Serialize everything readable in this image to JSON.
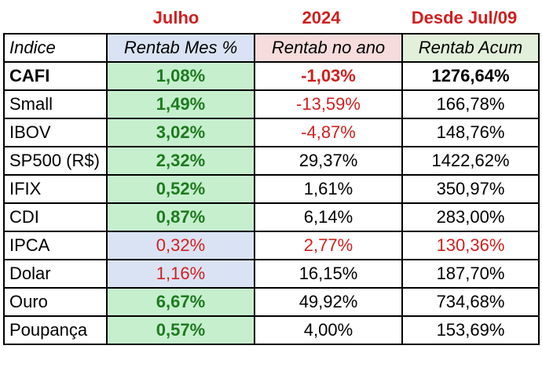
{
  "titles": {
    "month": "Julho",
    "year": "2024",
    "since": "Desde Jul/09"
  },
  "header": {
    "index": "Indice",
    "mes": "Rentab Mes %",
    "ano": "Rentab no ano",
    "acum": "Rentab Acum"
  },
  "colors": {
    "red": "#d01f1f",
    "green": "#1e7a1e",
    "green_fill": "#c6efce",
    "blue_fill": "#dae3f3",
    "pink_fill": "#f6dcdc",
    "olive_fill": "#e2efda"
  },
  "rows": [
    {
      "name": "CAFI",
      "mes": "1,08%",
      "ano": "-1,03%",
      "acum": "1276,64%"
    },
    {
      "name": "Small",
      "mes": "1,49%",
      "ano": "-13,59%",
      "acum": "166,78%"
    },
    {
      "name": "IBOV",
      "mes": "3,02%",
      "ano": "-4,87%",
      "acum": "148,76%"
    },
    {
      "name": "SP500 (R$)",
      "mes": "2,32%",
      "ano": "29,37%",
      "acum": "1422,62%"
    },
    {
      "name": "IFIX",
      "mes": "0,52%",
      "ano": "1,61%",
      "acum": "350,97%"
    },
    {
      "name": "CDI",
      "mes": "0,87%",
      "ano": "6,14%",
      "acum": "283,00%"
    },
    {
      "name": "IPCA",
      "mes": "0,32%",
      "ano": "2,77%",
      "acum": "130,36%"
    },
    {
      "name": "Dolar",
      "mes": "1,16%",
      "ano": "16,15%",
      "acum": "187,70%"
    },
    {
      "name": "Ouro",
      "mes": "6,67%",
      "ano": "49,92%",
      "acum": "734,68%"
    },
    {
      "name": "Poupança",
      "mes": "0,57%",
      "ano": "4,00%",
      "acum": "153,69%"
    }
  ]
}
